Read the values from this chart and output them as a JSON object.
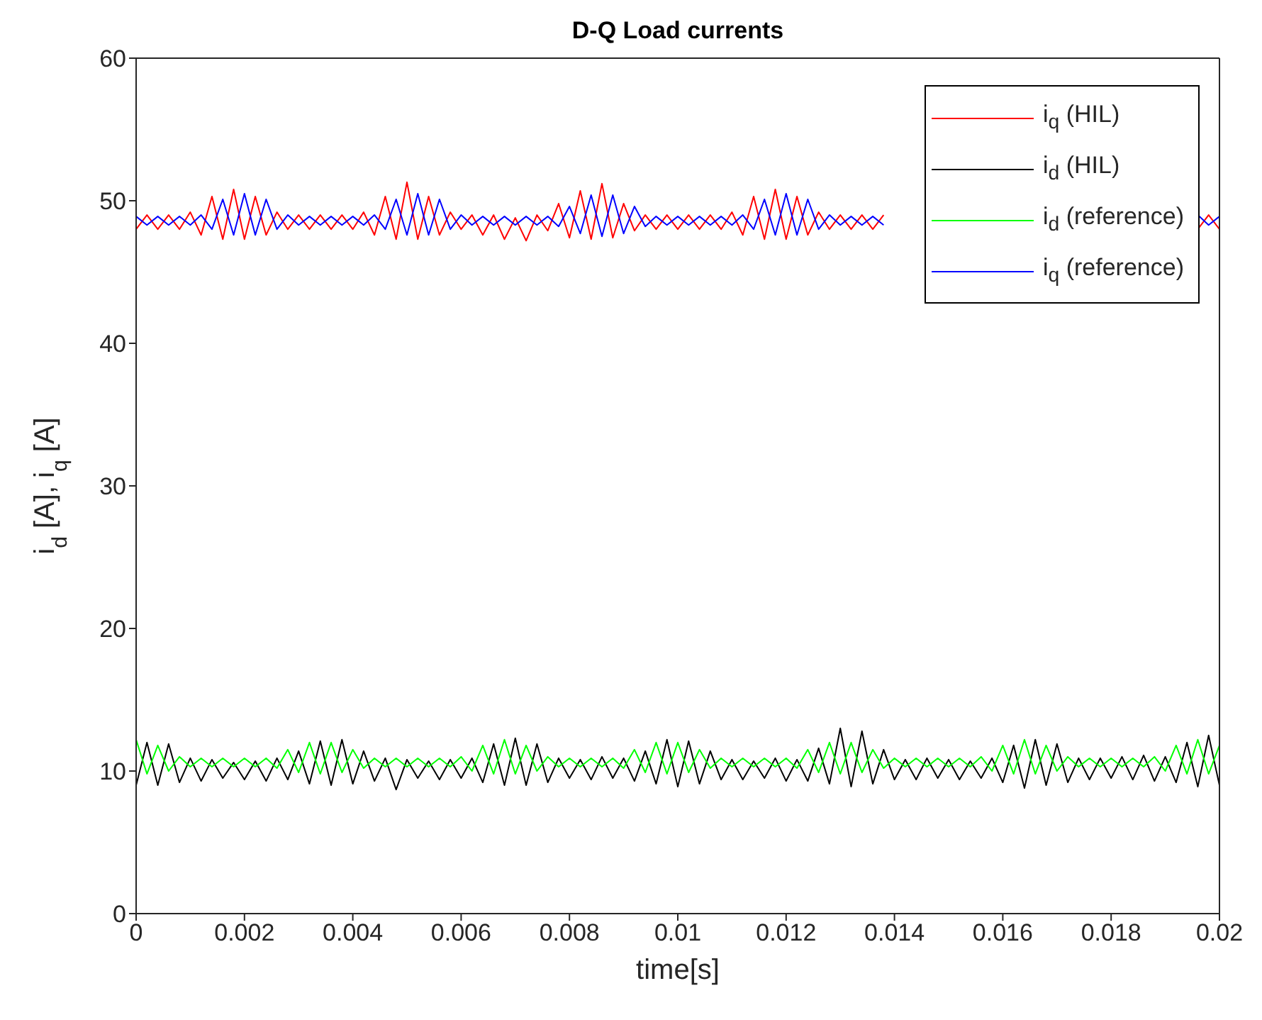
{
  "chart_data": {
    "type": "line",
    "title": "D-Q Load currents",
    "xlabel": "time[s]",
    "ylabel": "i$_{d}$ [A], i$_{q}$ [A]",
    "x": [
      0,
      0.0002,
      0.0004,
      0.0006,
      0.0008,
      0.001,
      0.0012,
      0.0014,
      0.0016,
      0.0018,
      0.002,
      0.0022,
      0.0024,
      0.0026,
      0.0028,
      0.003,
      0.0032,
      0.0034,
      0.0036,
      0.0038,
      0.004,
      0.0042,
      0.0044,
      0.0046,
      0.0048,
      0.005,
      0.0052,
      0.0054,
      0.0056,
      0.0058,
      0.006,
      0.0062,
      0.0064,
      0.0066,
      0.0068,
      0.007,
      0.0072,
      0.0074,
      0.0076,
      0.0078,
      0.008,
      0.0082,
      0.0084,
      0.0086,
      0.0088,
      0.009,
      0.0092,
      0.0094,
      0.0096,
      0.0098,
      0.01,
      0.0102,
      0.0104,
      0.0106,
      0.0108,
      0.011,
      0.0112,
      0.0114,
      0.0116,
      0.0118,
      0.012,
      0.0122,
      0.0124,
      0.0126,
      0.0128,
      0.013,
      0.0132,
      0.0134,
      0.0136,
      0.0138,
      0.014,
      0.0142,
      0.0144,
      0.0146,
      0.0148,
      0.015,
      0.0152,
      0.0154,
      0.0156,
      0.0158,
      0.016,
      0.0162,
      0.0164,
      0.0166,
      0.0168,
      0.017,
      0.0172,
      0.0174,
      0.0176,
      0.0178,
      0.018,
      0.0182,
      0.0184,
      0.0186,
      0.0188,
      0.019,
      0.0192,
      0.0194,
      0.0196,
      0.0198,
      0.02
    ],
    "series": [
      {
        "name": "i$_{q}$ (HIL)",
        "color": "#ff0000",
        "values": [
          48.0,
          49.0,
          48.0,
          49.0,
          48.0,
          49.2,
          47.6,
          50.3,
          47.3,
          50.8,
          47.3,
          50.3,
          47.6,
          49.2,
          48.0,
          49.0,
          48.0,
          49.0,
          48.0,
          49.0,
          48.0,
          49.2,
          47.6,
          50.3,
          47.3,
          51.3,
          47.3,
          50.3,
          47.6,
          49.2,
          48.0,
          49.0,
          47.6,
          49.0,
          47.3,
          48.8,
          47.2,
          49.0,
          47.9,
          49.8,
          47.4,
          50.7,
          47.3,
          51.2,
          47.4,
          49.8,
          47.9,
          49.0,
          48.0,
          49.0,
          48.0,
          49.0,
          48.0,
          49.0,
          48.0,
          49.2,
          47.6,
          50.3,
          47.3,
          50.8,
          47.3,
          50.3,
          47.6,
          49.2,
          48.0,
          49.0,
          48.0,
          49.0,
          48.0,
          49.0,
          null,
          null,
          null,
          null,
          null,
          null,
          null,
          null,
          null,
          null,
          null,
          null,
          null,
          null,
          null,
          null,
          null,
          null,
          null,
          null,
          null,
          null,
          null,
          null,
          null,
          null,
          null,
          null,
          48.0,
          49.0,
          48.0
        ]
      },
      {
        "name": "i$_{d}$ (HIL)",
        "color": "#000000",
        "values": [
          9.0,
          12.0,
          9.0,
          11.9,
          9.2,
          10.9,
          9.3,
          10.8,
          9.5,
          10.6,
          9.4,
          10.7,
          9.3,
          10.9,
          9.4,
          11.4,
          9.1,
          12.1,
          9.0,
          12.2,
          9.1,
          11.4,
          9.3,
          10.9,
          8.7,
          10.8,
          9.5,
          10.7,
          9.4,
          10.8,
          9.5,
          10.9,
          9.2,
          11.9,
          9.0,
          12.3,
          9.0,
          11.9,
          9.2,
          10.9,
          9.5,
          10.8,
          9.4,
          11.0,
          9.5,
          10.9,
          9.3,
          11.4,
          9.1,
          12.2,
          8.9,
          12.1,
          9.1,
          11.4,
          9.4,
          10.8,
          9.4,
          10.7,
          9.5,
          10.9,
          9.3,
          10.8,
          9.3,
          11.6,
          9.1,
          13.0,
          8.9,
          12.8,
          9.1,
          11.5,
          9.4,
          10.8,
          9.4,
          10.9,
          9.5,
          10.8,
          9.4,
          10.7,
          9.5,
          10.9,
          9.2,
          11.8,
          8.8,
          12.2,
          9.0,
          11.9,
          9.2,
          10.9,
          9.4,
          10.9,
          9.5,
          11.0,
          9.4,
          11.1,
          9.3,
          11.0,
          9.2,
          12.0,
          8.9,
          12.5,
          9.0
        ]
      },
      {
        "name": "i$_{d}$ (reference)",
        "color": "#00ff00",
        "values": [
          12.2,
          9.8,
          11.8,
          10.0,
          11.0,
          10.3,
          10.9,
          10.3,
          10.9,
          10.3,
          10.9,
          10.3,
          10.9,
          10.2,
          11.5,
          9.9,
          12.0,
          9.8,
          12.0,
          9.9,
          11.5,
          10.2,
          10.9,
          10.3,
          10.9,
          10.3,
          10.9,
          10.3,
          10.9,
          10.3,
          11.0,
          10.0,
          11.8,
          9.8,
          12.2,
          9.8,
          11.8,
          10.0,
          11.0,
          10.3,
          10.9,
          10.3,
          10.9,
          10.3,
          10.9,
          10.2,
          11.5,
          9.9,
          12.0,
          9.8,
          12.0,
          9.9,
          11.5,
          10.2,
          10.9,
          10.3,
          10.9,
          10.3,
          10.9,
          10.3,
          10.9,
          10.2,
          11.5,
          9.9,
          12.0,
          9.8,
          12.0,
          9.9,
          11.5,
          10.2,
          10.9,
          10.3,
          10.9,
          10.3,
          10.9,
          10.3,
          10.9,
          10.3,
          11.0,
          10.0,
          11.8,
          9.8,
          12.2,
          9.8,
          11.8,
          10.0,
          11.0,
          10.3,
          10.9,
          10.3,
          10.9,
          10.3,
          10.9,
          10.3,
          11.0,
          10.0,
          11.8,
          9.8,
          12.2,
          9.8,
          11.8
        ]
      },
      {
        "name": "i$_{q}$ (reference)",
        "color": "#0000ff",
        "values": [
          48.9,
          48.3,
          48.9,
          48.3,
          48.9,
          48.3,
          49.0,
          48.0,
          50.1,
          47.6,
          50.5,
          47.6,
          50.1,
          48.0,
          49.0,
          48.3,
          48.9,
          48.3,
          48.9,
          48.3,
          48.9,
          48.3,
          49.0,
          48.0,
          50.1,
          47.6,
          50.5,
          47.6,
          50.1,
          48.0,
          49.0,
          48.3,
          48.9,
          48.3,
          48.9,
          48.3,
          48.9,
          48.3,
          48.9,
          48.2,
          49.6,
          47.7,
          50.4,
          47.5,
          50.4,
          47.7,
          49.6,
          48.2,
          48.9,
          48.3,
          48.9,
          48.3,
          48.9,
          48.3,
          48.9,
          48.3,
          49.0,
          48.0,
          50.1,
          47.6,
          50.5,
          47.6,
          50.1,
          48.0,
          49.0,
          48.3,
          48.9,
          48.3,
          48.9,
          48.3,
          null,
          null,
          null,
          null,
          null,
          null,
          null,
          null,
          null,
          null,
          null,
          null,
          null,
          null,
          null,
          null,
          null,
          null,
          null,
          null,
          null,
          null,
          null,
          null,
          null,
          null,
          null,
          null,
          49.0,
          48.3,
          48.9
        ]
      }
    ],
    "xlim": [
      0,
      0.02
    ],
    "xticks": [
      0,
      0.002,
      0.004,
      0.006,
      0.008,
      0.01,
      0.012,
      0.014,
      0.016,
      0.018,
      0.02
    ],
    "ylim": [
      0,
      60
    ],
    "yticks": [
      0,
      10,
      20,
      30,
      40,
      50,
      60
    ],
    "legend": "top right"
  }
}
